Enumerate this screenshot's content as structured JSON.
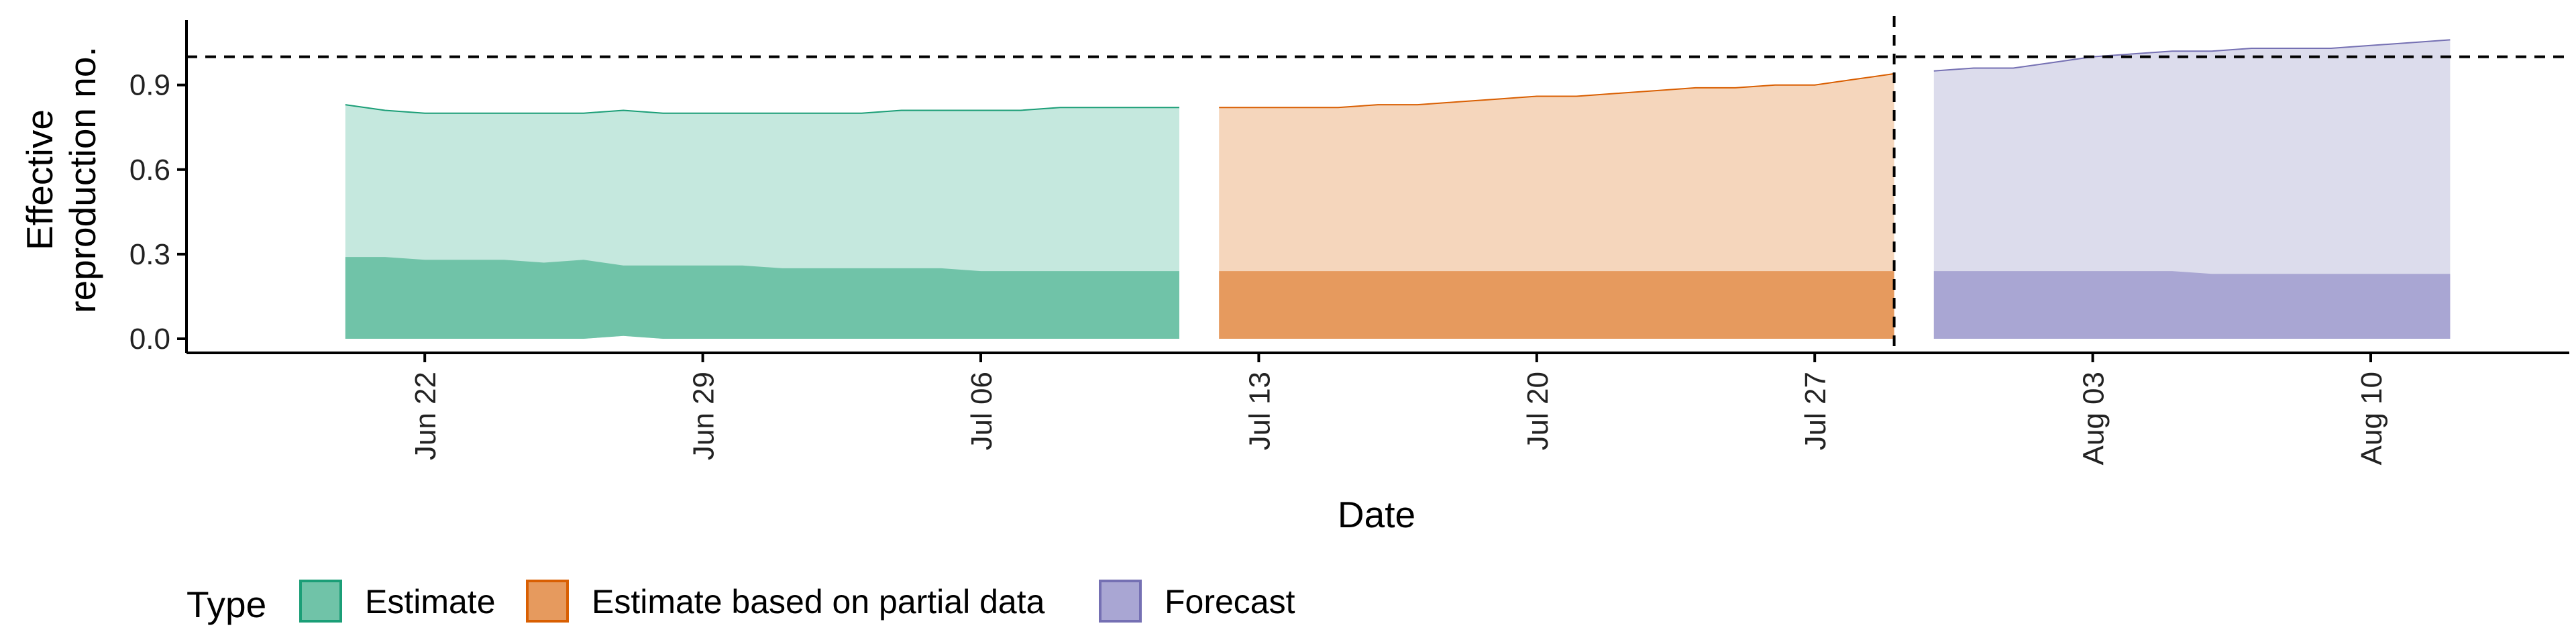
{
  "chart_data": {
    "type": "area",
    "xlabel": "Date",
    "ylabel_lines": [
      "Effective",
      "reproduction no."
    ],
    "x_ticks": [
      "2020-06-22",
      "2020-06-29",
      "2020-07-06",
      "2020-07-13",
      "2020-07-20",
      "2020-07-27",
      "2020-08-03",
      "2020-08-10"
    ],
    "x_tick_labels": [
      "Jun 22",
      "Jun 29",
      "Jul 06",
      "Jul 13",
      "Jul 20",
      "Jul 27",
      "Aug 03",
      "Aug 10"
    ],
    "xlim": [
      "2020-06-16",
      "2020-08-15"
    ],
    "y_ticks": [
      0.0,
      0.3,
      0.6,
      0.9
    ],
    "y_tick_labels": [
      "0.0",
      "0.3",
      "0.6",
      "0.9"
    ],
    "ylim": [
      -0.05,
      1.13
    ],
    "reference_line_y": 1.0,
    "reference_line_x": "2020-07-29",
    "grid": false,
    "legend": {
      "title": "Type",
      "placement": "bottom-left",
      "entries": [
        "Estimate",
        "Estimate based on partial data",
        "Forecast"
      ]
    },
    "series": [
      {
        "name": "Estimate",
        "fill_outer": "#c5e8de",
        "fill_inner": "#70c3a8",
        "stroke": "#1b9e77",
        "dates": [
          "2020-06-20",
          "2020-06-21",
          "2020-06-22",
          "2020-06-23",
          "2020-06-24",
          "2020-06-25",
          "2020-06-26",
          "2020-06-27",
          "2020-06-28",
          "2020-06-29",
          "2020-06-30",
          "2020-07-01",
          "2020-07-02",
          "2020-07-03",
          "2020-07-04",
          "2020-07-05",
          "2020-07-06",
          "2020-07-07",
          "2020-07-08",
          "2020-07-09",
          "2020-07-10",
          "2020-07-11"
        ],
        "upper90": [
          0.83,
          0.81,
          0.8,
          0.8,
          0.8,
          0.8,
          0.8,
          0.81,
          0.8,
          0.8,
          0.8,
          0.8,
          0.8,
          0.8,
          0.81,
          0.81,
          0.81,
          0.81,
          0.82,
          0.82,
          0.82,
          0.82
        ],
        "upper50": [
          0.29,
          0.29,
          0.28,
          0.28,
          0.28,
          0.27,
          0.28,
          0.26,
          0.26,
          0.26,
          0.26,
          0.25,
          0.25,
          0.25,
          0.25,
          0.25,
          0.24,
          0.24,
          0.24,
          0.24,
          0.24,
          0.24
        ],
        "lower90": [
          0.0,
          0.0,
          0.0,
          0.0,
          0.0,
          0.0,
          0.0,
          0.01,
          0.0,
          0.0,
          0.0,
          0.0,
          0.0,
          0.0,
          0.0,
          0.0,
          0.0,
          0.0,
          0.0,
          0.0,
          0.0,
          0.0
        ]
      },
      {
        "name": "Estimate based on partial data",
        "fill_outer": "#f5d6bc",
        "fill_inner": "#e69a5e",
        "stroke": "#d95f02",
        "dates": [
          "2020-07-12",
          "2020-07-13",
          "2020-07-14",
          "2020-07-15",
          "2020-07-16",
          "2020-07-17",
          "2020-07-18",
          "2020-07-19",
          "2020-07-20",
          "2020-07-21",
          "2020-07-22",
          "2020-07-23",
          "2020-07-24",
          "2020-07-25",
          "2020-07-26",
          "2020-07-27",
          "2020-07-28",
          "2020-07-29"
        ],
        "upper90": [
          0.82,
          0.82,
          0.82,
          0.82,
          0.83,
          0.83,
          0.84,
          0.85,
          0.86,
          0.86,
          0.87,
          0.88,
          0.89,
          0.89,
          0.9,
          0.9,
          0.92,
          0.94
        ],
        "upper50": [
          0.24,
          0.24,
          0.24,
          0.24,
          0.24,
          0.24,
          0.24,
          0.24,
          0.24,
          0.24,
          0.24,
          0.24,
          0.24,
          0.24,
          0.24,
          0.24,
          0.24,
          0.24
        ],
        "lower90": [
          0.0,
          0.0,
          0.0,
          0.0,
          0.0,
          0.0,
          0.0,
          0.0,
          0.0,
          0.0,
          0.0,
          0.0,
          0.0,
          0.0,
          0.0,
          0.0,
          0.0,
          0.0
        ]
      },
      {
        "name": "Forecast",
        "fill_outer": "#dcdcec",
        "fill_inner": "#a9a6d3",
        "stroke": "#7570b3",
        "dates": [
          "2020-07-30",
          "2020-07-31",
          "2020-08-01",
          "2020-08-02",
          "2020-08-03",
          "2020-08-04",
          "2020-08-05",
          "2020-08-06",
          "2020-08-07",
          "2020-08-08",
          "2020-08-09",
          "2020-08-10",
          "2020-08-11",
          "2020-08-12"
        ],
        "upper90": [
          0.95,
          0.96,
          0.96,
          0.98,
          1.0,
          1.01,
          1.02,
          1.02,
          1.03,
          1.03,
          1.03,
          1.04,
          1.05,
          1.06
        ],
        "upper50": [
          0.24,
          0.24,
          0.24,
          0.24,
          0.24,
          0.24,
          0.24,
          0.23,
          0.23,
          0.23,
          0.23,
          0.23,
          0.23,
          0.23
        ],
        "lower90": [
          0.0,
          0.0,
          0.0,
          0.0,
          0.0,
          0.0,
          0.0,
          0.0,
          0.0,
          0.0,
          0.0,
          0.0,
          0.0,
          0.0
        ]
      }
    ]
  }
}
